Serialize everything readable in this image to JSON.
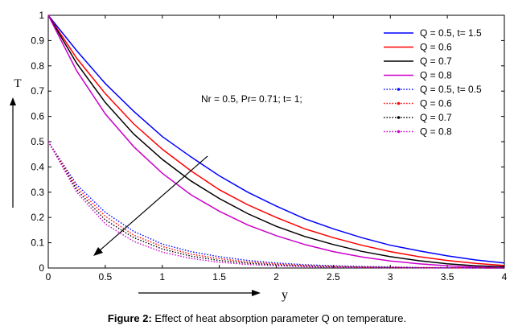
{
  "caption": {
    "label": "Figure 2:",
    "text": "Effect of heat absorption parameter Q on temperature."
  },
  "chart_data": {
    "type": "line",
    "title": "",
    "xlabel": "y",
    "ylabel": "T",
    "xlim": [
      0,
      4
    ],
    "ylim": [
      0,
      1
    ],
    "x_ticks": [
      "0",
      "0.5",
      "1",
      "1.5",
      "2",
      "2.5",
      "3",
      "3.5",
      "4"
    ],
    "y_ticks": [
      "0",
      "0.1",
      "0.2",
      "0.3",
      "0.4",
      "0.5",
      "0.6",
      "0.7",
      "0.8",
      "0.9",
      "1"
    ],
    "grid": false,
    "legend_position": "top-right",
    "annotation": "Nr = 0.5, Pr= 0.71; t= 1;",
    "x": [
      0,
      0.25,
      0.5,
      0.75,
      1,
      1.25,
      1.5,
      1.75,
      2,
      2.25,
      2.5,
      2.75,
      3,
      3.25,
      3.5,
      3.75,
      4
    ],
    "series": [
      {
        "name": "Q = 0.5, t= 1.5",
        "color": "#0000ff",
        "style": "solid",
        "values": [
          1.0,
          0.86,
          0.73,
          0.62,
          0.52,
          0.44,
          0.365,
          0.3,
          0.245,
          0.195,
          0.155,
          0.12,
          0.09,
          0.068,
          0.048,
          0.032,
          0.02
        ]
      },
      {
        "name": "Q = 0.6",
        "color": "#ff0000",
        "style": "solid",
        "values": [
          1.0,
          0.83,
          0.69,
          0.57,
          0.47,
          0.385,
          0.31,
          0.25,
          0.2,
          0.155,
          0.12,
          0.09,
          0.065,
          0.045,
          0.03,
          0.018,
          0.01
        ]
      },
      {
        "name": "Q = 0.7",
        "color": "#000000",
        "style": "solid",
        "values": [
          1.0,
          0.81,
          0.655,
          0.53,
          0.43,
          0.345,
          0.275,
          0.215,
          0.165,
          0.125,
          0.093,
          0.066,
          0.045,
          0.029,
          0.017,
          0.009,
          0.005
        ]
      },
      {
        "name": "Q = 0.8",
        "color": "#cc00cc",
        "style": "solid",
        "values": [
          1.0,
          0.78,
          0.61,
          0.48,
          0.375,
          0.29,
          0.225,
          0.17,
          0.128,
          0.093,
          0.065,
          0.044,
          0.028,
          0.017,
          0.009,
          0.004,
          0.001
        ]
      },
      {
        "name": "Q = 0.5, t= 0.5",
        "color": "#0000ff",
        "style": "dotted",
        "values": [
          0.5,
          0.33,
          0.22,
          0.145,
          0.095,
          0.065,
          0.045,
          0.03,
          0.02,
          0.013,
          0.009,
          0.006,
          0.004,
          0.002,
          0.001,
          0.0005,
          0.0
        ]
      },
      {
        "name": "Q = 0.6",
        "color": "#ff0000",
        "style": "dotted",
        "values": [
          0.5,
          0.32,
          0.205,
          0.13,
          0.085,
          0.055,
          0.037,
          0.024,
          0.016,
          0.01,
          0.007,
          0.004,
          0.003,
          0.002,
          0.001,
          0.0005,
          0.0
        ]
      },
      {
        "name": "Q = 0.7",
        "color": "#000000",
        "style": "dotted",
        "values": [
          0.5,
          0.31,
          0.19,
          0.12,
          0.075,
          0.047,
          0.03,
          0.019,
          0.012,
          0.008,
          0.005,
          0.003,
          0.002,
          0.001,
          0.0005,
          0.0002,
          0.0
        ]
      },
      {
        "name": "Q = 0.8",
        "color": "#cc00cc",
        "style": "dotted",
        "values": [
          0.5,
          0.3,
          0.175,
          0.105,
          0.063,
          0.038,
          0.023,
          0.014,
          0.009,
          0.005,
          0.003,
          0.002,
          0.001,
          0.0005,
          0.0002,
          0.0001,
          0.0
        ]
      }
    ]
  }
}
